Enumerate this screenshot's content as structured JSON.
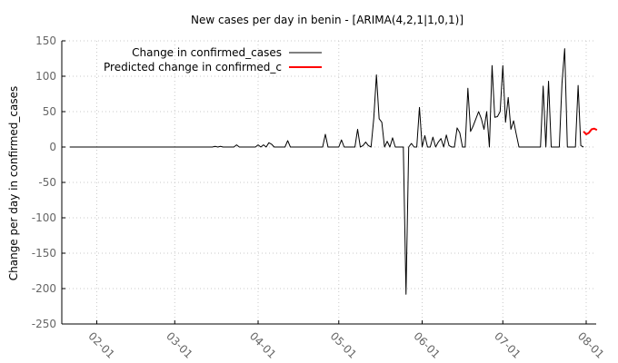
{
  "chart_data": {
    "type": "line",
    "title": "New cases per day in benin -  [ARIMA(4,2,1|1,0,1)]",
    "xlabel": "",
    "ylabel": "Change per day in confirmed_cases",
    "ylim": [
      -250,
      150
    ],
    "xlim": [
      "2020-01-19",
      "2020-08-01"
    ],
    "yticks": [
      150,
      100,
      50,
      0,
      -50,
      -100,
      -150,
      -200,
      -250
    ],
    "xticks": [
      {
        "date": "2020-02-01",
        "label": "02-01"
      },
      {
        "date": "2020-03-01",
        "label": "03-01"
      },
      {
        "date": "2020-04-01",
        "label": "04-01"
      },
      {
        "date": "2020-05-01",
        "label": "05-01"
      },
      {
        "date": "2020-06-01",
        "label": "06-01"
      },
      {
        "date": "2020-07-01",
        "label": "07-01"
      },
      {
        "date": "2020-08-01",
        "label": "08-01"
      }
    ],
    "grid": true,
    "legend_position": "top-left",
    "series": [
      {
        "name": "Change in confirmed_cases",
        "color": "#000000",
        "points": [
          [
            "2020-01-22",
            0
          ],
          [
            "2020-03-15",
            0
          ],
          [
            "2020-03-16",
            1
          ],
          [
            "2020-03-17",
            0
          ],
          [
            "2020-03-18",
            1
          ],
          [
            "2020-03-19",
            0
          ],
          [
            "2020-03-23",
            0
          ],
          [
            "2020-03-24",
            3
          ],
          [
            "2020-03-25",
            0
          ],
          [
            "2020-03-31",
            0
          ],
          [
            "2020-04-01",
            3
          ],
          [
            "2020-04-02",
            0
          ],
          [
            "2020-04-03",
            3
          ],
          [
            "2020-04-04",
            0
          ],
          [
            "2020-04-05",
            6
          ],
          [
            "2020-04-06",
            4
          ],
          [
            "2020-04-07",
            0
          ],
          [
            "2020-04-11",
            0
          ],
          [
            "2020-04-12",
            9
          ],
          [
            "2020-04-13",
            0
          ],
          [
            "2020-04-25",
            0
          ],
          [
            "2020-04-26",
            18
          ],
          [
            "2020-04-27",
            0
          ],
          [
            "2020-05-01",
            0
          ],
          [
            "2020-05-02",
            10
          ],
          [
            "2020-05-03",
            0
          ],
          [
            "2020-05-07",
            0
          ],
          [
            "2020-05-08",
            25
          ],
          [
            "2020-05-09",
            0
          ],
          [
            "2020-05-10",
            2
          ],
          [
            "2020-05-11",
            7
          ],
          [
            "2020-05-12",
            2
          ],
          [
            "2020-05-13",
            0
          ],
          [
            "2020-05-14",
            40
          ],
          [
            "2020-05-15",
            102
          ],
          [
            "2020-05-16",
            40
          ],
          [
            "2020-05-17",
            35
          ],
          [
            "2020-05-18",
            0
          ],
          [
            "2020-05-19",
            8
          ],
          [
            "2020-05-20",
            0
          ],
          [
            "2020-05-21",
            13
          ],
          [
            "2020-05-22",
            0
          ],
          [
            "2020-05-25",
            0
          ],
          [
            "2020-05-26",
            -208
          ],
          [
            "2020-05-27",
            0
          ],
          [
            "2020-05-28",
            5
          ],
          [
            "2020-05-29",
            0
          ],
          [
            "2020-05-30",
            0
          ],
          [
            "2020-05-31",
            56
          ],
          [
            "2020-06-01",
            0
          ],
          [
            "2020-06-02",
            16
          ],
          [
            "2020-06-03",
            0
          ],
          [
            "2020-06-04",
            0
          ],
          [
            "2020-06-05",
            14
          ],
          [
            "2020-06-06",
            0
          ],
          [
            "2020-06-07",
            7
          ],
          [
            "2020-06-08",
            12
          ],
          [
            "2020-06-09",
            0
          ],
          [
            "2020-06-10",
            17
          ],
          [
            "2020-06-11",
            2
          ],
          [
            "2020-06-12",
            0
          ],
          [
            "2020-06-13",
            0
          ],
          [
            "2020-06-14",
            27
          ],
          [
            "2020-06-15",
            20
          ],
          [
            "2020-06-16",
            0
          ],
          [
            "2020-06-17",
            0
          ],
          [
            "2020-06-18",
            83
          ],
          [
            "2020-06-19",
            22
          ],
          [
            "2020-06-20",
            30
          ],
          [
            "2020-06-21",
            40
          ],
          [
            "2020-06-22",
            50
          ],
          [
            "2020-06-23",
            40
          ],
          [
            "2020-06-24",
            25
          ],
          [
            "2020-06-25",
            50
          ],
          [
            "2020-06-26",
            0
          ],
          [
            "2020-06-27",
            115
          ],
          [
            "2020-06-28",
            42
          ],
          [
            "2020-06-29",
            43
          ],
          [
            "2020-06-30",
            50
          ],
          [
            "2020-07-01",
            115
          ],
          [
            "2020-07-02",
            35
          ],
          [
            "2020-07-03",
            70
          ],
          [
            "2020-07-04",
            25
          ],
          [
            "2020-07-05",
            37
          ],
          [
            "2020-07-06",
            18
          ],
          [
            "2020-07-07",
            0
          ],
          [
            "2020-07-15",
            0
          ],
          [
            "2020-07-16",
            86
          ],
          [
            "2020-07-17",
            0
          ],
          [
            "2020-07-18",
            93
          ],
          [
            "2020-07-19",
            0
          ],
          [
            "2020-07-22",
            0
          ],
          [
            "2020-07-23",
            90
          ],
          [
            "2020-07-24",
            139
          ],
          [
            "2020-07-25",
            0
          ],
          [
            "2020-07-28",
            0
          ],
          [
            "2020-07-29",
            87
          ],
          [
            "2020-07-30",
            2
          ],
          [
            "2020-07-31",
            0
          ]
        ]
      },
      {
        "name": "Predicted change in confirmed_c",
        "color": "#ff0000",
        "points": [
          [
            "2020-07-31",
            22
          ],
          [
            "2020-08-01",
            18
          ],
          [
            "2020-08-02",
            20
          ],
          [
            "2020-08-03",
            25
          ],
          [
            "2020-08-04",
            26
          ],
          [
            "2020-08-05",
            24
          ]
        ]
      }
    ]
  }
}
